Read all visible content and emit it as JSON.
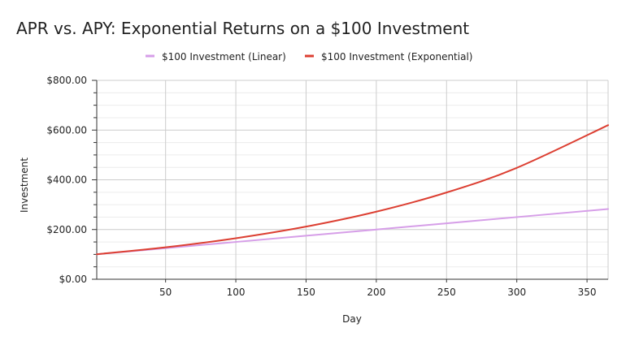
{
  "chart_data": {
    "type": "line",
    "title": "APR vs. APY: Exponential Returns on a $100 Investment",
    "xlabel": "Day",
    "ylabel": "Investment",
    "xlim": [
      1,
      365
    ],
    "ylim": [
      0,
      800
    ],
    "x_ticks": [
      50,
      100,
      150,
      200,
      250,
      300,
      350
    ],
    "x_tick_labels": [
      "50",
      "100",
      "150",
      "200",
      "250",
      "300",
      "350"
    ],
    "y_ticks": [
      0,
      200,
      400,
      600,
      800
    ],
    "y_tick_labels": [
      "$0.00",
      "$200.00",
      "$400.00",
      "$600.00",
      "$800.00"
    ],
    "y_minor_step": 50,
    "grid": true,
    "legend_position": "top-center",
    "series": [
      {
        "name": "$100 Investment (Linear)",
        "color": "#d69ee8",
        "x": [
          1,
          50,
          100,
          150,
          200,
          250,
          300,
          365
        ],
        "values": [
          100.5,
          125,
          150,
          175,
          200,
          225,
          250,
          282.5
        ]
      },
      {
        "name": "$100 Investment (Exponential)",
        "color": "#dc3f32",
        "x": [
          1,
          50,
          100,
          150,
          200,
          250,
          300,
          365
        ],
        "values": [
          100.5,
          128.4,
          164.9,
          211.7,
          271.8,
          349.0,
          448.2,
          619.9
        ]
      }
    ]
  }
}
